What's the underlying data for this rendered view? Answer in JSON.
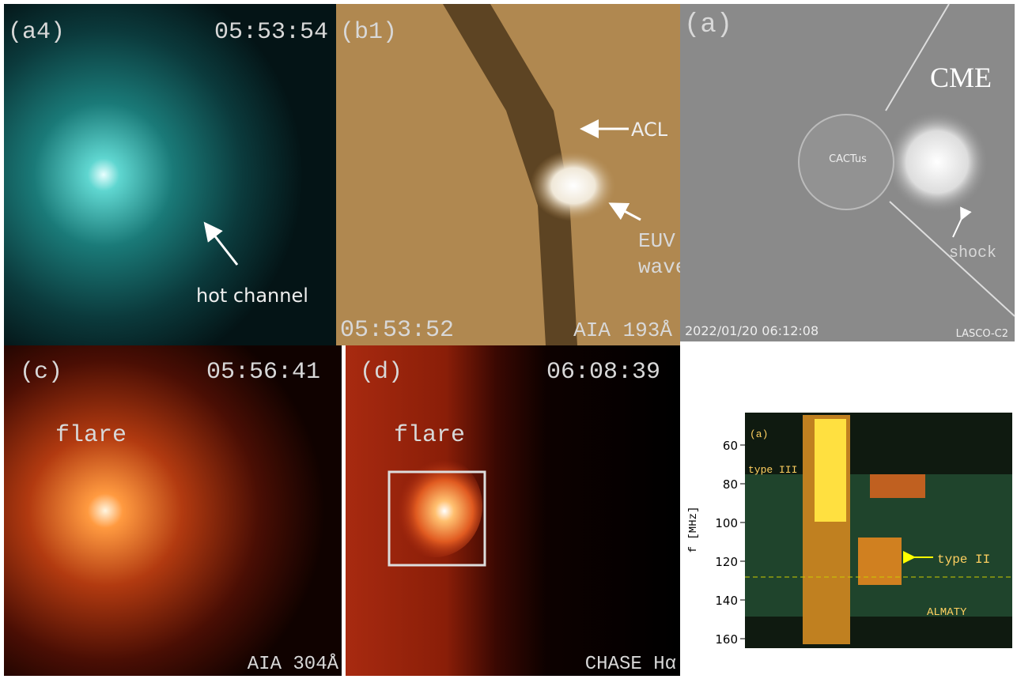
{
  "panel_a4": {
    "label": "(a4)",
    "time": "05:53:54",
    "annotation": "hot channel"
  },
  "panel_b1": {
    "label": "(b1)",
    "time": "05:53:52",
    "instrument": "AIA 193Å",
    "annotations": [
      "ACL",
      "EUV",
      "wave"
    ]
  },
  "panel_a": {
    "label": "(a)",
    "annotations": [
      "CME",
      "CACTus",
      "shock"
    ],
    "timestamp": "2022/01/20 06:12:08",
    "instrument": "LASCO-C2"
  },
  "panel_c": {
    "label": "(c)",
    "time": "05:56:41",
    "annotation": "flare",
    "instrument": "AIA 304Å"
  },
  "panel_d": {
    "label": "(d)",
    "time": "06:08:39",
    "annotation": "flare",
    "instrument": "CHASE Hα"
  },
  "spectrogram": {
    "label": "(a)",
    "axis_label": "f [MHz]",
    "yticks": [
      60,
      80,
      100,
      120,
      140,
      160
    ],
    "annotations": [
      "type III",
      "type II",
      "ALMATY"
    ]
  }
}
